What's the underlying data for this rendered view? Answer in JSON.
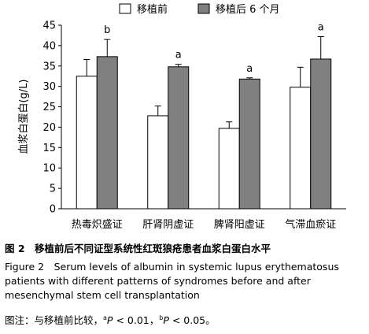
{
  "chart_data": {
    "type": "bar",
    "ylabel": "血浆白蛋白(g/L)",
    "ylim": [
      0,
      45
    ],
    "yticks": [
      0,
      5,
      10,
      15,
      20,
      25,
      30,
      35,
      40,
      45
    ],
    "categories": [
      "热毒炽盛证",
      "肝肾阴虚证",
      "脾肾阳虚证",
      "气滞血瘀证"
    ],
    "series": [
      {
        "name": "移植前",
        "color": "#ffffff",
        "values": [
          32.5,
          22.8,
          19.7,
          29.8
        ],
        "errors": [
          4.1,
          2.4,
          1.6,
          4.9
        ]
      },
      {
        "name": "移植后 6 个月",
        "color": "#808080",
        "values": [
          37.3,
          34.8,
          31.8,
          36.7
        ],
        "errors": [
          4.2,
          0.6,
          0.3,
          5.5
        ]
      }
    ],
    "annotations": [
      "b",
      "a",
      "a",
      "a"
    ],
    "legend_position": "top-right",
    "grid": false
  },
  "caption": {
    "title_cn": "图 2　移植前后不同证型系统性红斑狼疮患者血浆白蛋白水平",
    "title_en": "Figure 2　Serum levels of albumin in systemic lupus erythematosus patients with different patterns of syndromes before and after mesenchymal stem cell transplantation",
    "note_prefix": "图注：与移植前比较，",
    "note_a_sup": "a",
    "note_a_text": " < 0.01，",
    "note_b_sup": "b",
    "note_b_text": " < 0.05。",
    "p_symbol": "P"
  }
}
